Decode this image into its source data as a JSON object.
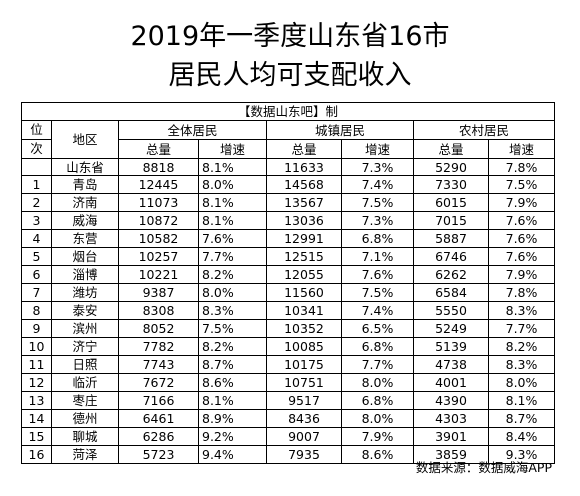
{
  "title_line1": "2019年一季度山东省16市",
  "title_line2": "居民人均可支配收入",
  "credit": "【数据山东吧】制",
  "headers": {
    "rank_top": "位",
    "rank_bottom": "次",
    "region": "地区",
    "all": "全体居民",
    "urban": "城镇居民",
    "rural": "农村居民",
    "total": "总量",
    "growth": "增速"
  },
  "province": {
    "name": "山东省",
    "all_total": "8818",
    "all_growth": "8.1%",
    "urban_total": "11633",
    "urban_growth": "7.3%",
    "rural_total": "5290",
    "rural_growth": "7.8%"
  },
  "rows": [
    {
      "rank": "1",
      "name": "青岛",
      "all_total": "12445",
      "all_growth": "8.0%",
      "urban_total": "14568",
      "urban_growth": "7.4%",
      "rural_total": "7330",
      "rural_growth": "7.5%"
    },
    {
      "rank": "2",
      "name": "济南",
      "all_total": "11073",
      "all_growth": "8.1%",
      "urban_total": "13567",
      "urban_growth": "7.5%",
      "rural_total": "6015",
      "rural_growth": "7.9%"
    },
    {
      "rank": "3",
      "name": "威海",
      "all_total": "10872",
      "all_growth": "8.1%",
      "urban_total": "13036",
      "urban_growth": "7.3%",
      "rural_total": "7015",
      "rural_growth": "7.6%"
    },
    {
      "rank": "4",
      "name": "东营",
      "all_total": "10582",
      "all_growth": "7.6%",
      "urban_total": "12991",
      "urban_growth": "6.8%",
      "rural_total": "5887",
      "rural_growth": "7.6%"
    },
    {
      "rank": "5",
      "name": "烟台",
      "all_total": "10257",
      "all_growth": "7.7%",
      "urban_total": "12515",
      "urban_growth": "7.1%",
      "rural_total": "6746",
      "rural_growth": "7.6%"
    },
    {
      "rank": "6",
      "name": "淄博",
      "all_total": "10221",
      "all_growth": "8.2%",
      "urban_total": "12055",
      "urban_growth": "7.6%",
      "rural_total": "6262",
      "rural_growth": "7.9%"
    },
    {
      "rank": "7",
      "name": "潍坊",
      "all_total": "9387",
      "all_growth": "8.0%",
      "urban_total": "11560",
      "urban_growth": "7.5%",
      "rural_total": "6584",
      "rural_growth": "7.8%"
    },
    {
      "rank": "8",
      "name": "泰安",
      "all_total": "8308",
      "all_growth": "8.3%",
      "urban_total": "10341",
      "urban_growth": "7.4%",
      "rural_total": "5550",
      "rural_growth": "8.3%"
    },
    {
      "rank": "9",
      "name": "滨州",
      "all_total": "8052",
      "all_growth": "7.5%",
      "urban_total": "10352",
      "urban_growth": "6.5%",
      "rural_total": "5249",
      "rural_growth": "7.7%"
    },
    {
      "rank": "10",
      "name": "济宁",
      "all_total": "7782",
      "all_growth": "8.2%",
      "urban_total": "10085",
      "urban_growth": "6.8%",
      "rural_total": "5139",
      "rural_growth": "8.2%"
    },
    {
      "rank": "11",
      "name": "日照",
      "all_total": "7743",
      "all_growth": "8.7%",
      "urban_total": "10175",
      "urban_growth": "7.7%",
      "rural_total": "4738",
      "rural_growth": "8.3%"
    },
    {
      "rank": "12",
      "name": "临沂",
      "all_total": "7672",
      "all_growth": "8.6%",
      "urban_total": "10751",
      "urban_growth": "8.0%",
      "rural_total": "4001",
      "rural_growth": "8.0%"
    },
    {
      "rank": "13",
      "name": "枣庄",
      "all_total": "7166",
      "all_growth": "8.1%",
      "urban_total": "9517",
      "urban_growth": "6.8%",
      "rural_total": "4390",
      "rural_growth": "8.1%"
    },
    {
      "rank": "14",
      "name": "德州",
      "all_total": "6461",
      "all_growth": "8.9%",
      "urban_total": "8436",
      "urban_growth": "8.0%",
      "rural_total": "4303",
      "rural_growth": "8.7%"
    },
    {
      "rank": "15",
      "name": "聊城",
      "all_total": "6286",
      "all_growth": "9.2%",
      "urban_total": "9007",
      "urban_growth": "7.9%",
      "rural_total": "3901",
      "rural_growth": "8.4%"
    },
    {
      "rank": "16",
      "name": "菏泽",
      "all_total": "5723",
      "all_growth": "9.4%",
      "urban_total": "7935",
      "urban_growth": "8.6%",
      "rural_total": "3859",
      "rural_growth": "9.3%"
    }
  ],
  "source": "数据来源：数据威海APP"
}
